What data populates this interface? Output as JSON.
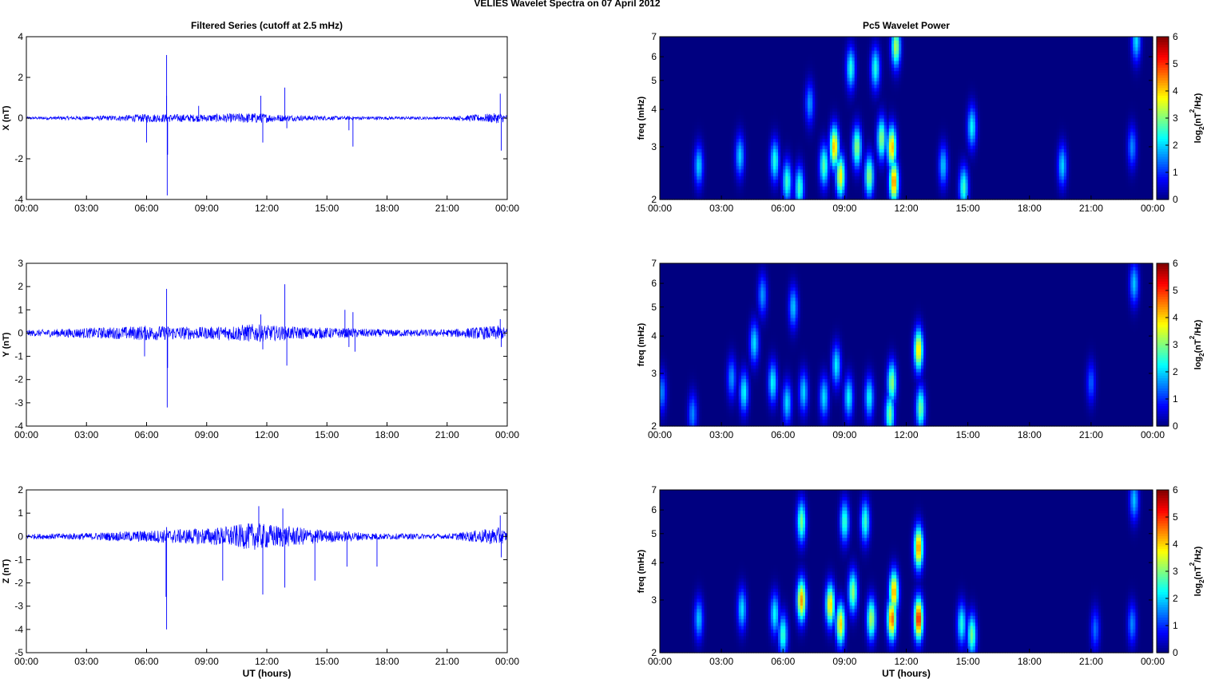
{
  "figure_title": "VELIES Wavelet Spectra on 07 April     2012",
  "chart_data": [
    {
      "type": "line",
      "panel": "filtered-series-x",
      "title": "Filtered Series (cutoff at 2.5 mHz)",
      "xlabel": "",
      "ylabel": "X (nT)",
      "xlim": [
        0,
        24
      ],
      "ylim": [
        -4,
        4
      ],
      "x_ticks": [
        "00:00",
        "03:00",
        "06:00",
        "09:00",
        "12:00",
        "15:00",
        "18:00",
        "21:00",
        "00:00"
      ],
      "y_ticks": [
        "4",
        "2",
        "0",
        "-2",
        "-4"
      ],
      "color": "#0000ff",
      "noise_envelope": [
        [
          0,
          0.05
        ],
        [
          3.3,
          0.08
        ],
        [
          4.5,
          0.1
        ],
        [
          6,
          0.16
        ],
        [
          9,
          0.14
        ],
        [
          11.3,
          0.2
        ],
        [
          13,
          0.12
        ],
        [
          15,
          0.08
        ],
        [
          18,
          0.06
        ],
        [
          21,
          0.05
        ],
        [
          23.6,
          0.2
        ],
        [
          24,
          0.12
        ]
      ],
      "spikes": [
        {
          "t": 7.0,
          "y": 3.1
        },
        {
          "t": 7.03,
          "y": -3.8
        },
        {
          "t": 7.0,
          "y": 1.1
        },
        {
          "t": 7.05,
          "y": -1.8
        },
        {
          "t": 6.0,
          "y": -1.2
        },
        {
          "t": 11.7,
          "y": 1.1
        },
        {
          "t": 11.8,
          "y": -1.2
        },
        {
          "t": 12.9,
          "y": 1.5
        },
        {
          "t": 13.0,
          "y": -0.5
        },
        {
          "t": 16.3,
          "y": -1.4
        },
        {
          "t": 16.1,
          "y": -0.6
        },
        {
          "t": 23.65,
          "y": 1.2
        },
        {
          "t": 23.7,
          "y": -1.6
        },
        {
          "t": 8.6,
          "y": 0.6
        }
      ]
    },
    {
      "type": "line",
      "panel": "filtered-series-y",
      "title": "",
      "xlabel": "",
      "ylabel": "Y (nT)",
      "xlim": [
        0,
        24
      ],
      "ylim": [
        -4,
        3
      ],
      "x_ticks": [
        "00:00",
        "03:00",
        "06:00",
        "09:00",
        "12:00",
        "15:00",
        "18:00",
        "21:00",
        "00:00"
      ],
      "y_ticks": [
        "3",
        "2",
        "1",
        "0",
        "-1",
        "-2",
        "-3",
        "-4"
      ],
      "color": "#0000ff",
      "noise_envelope": [
        [
          0,
          0.1
        ],
        [
          3.3,
          0.18
        ],
        [
          4.5,
          0.2
        ],
        [
          6,
          0.25
        ],
        [
          9,
          0.2
        ],
        [
          11.3,
          0.3
        ],
        [
          13,
          0.22
        ],
        [
          15,
          0.18
        ],
        [
          18,
          0.12
        ],
        [
          21,
          0.12
        ],
        [
          23.6,
          0.25
        ],
        [
          24,
          0.15
        ]
      ],
      "spikes": [
        {
          "t": 7.0,
          "y": 1.9
        },
        {
          "t": 7.03,
          "y": -3.2
        },
        {
          "t": 7.05,
          "y": -1.5
        },
        {
          "t": 5.9,
          "y": -1.0
        },
        {
          "t": 12.9,
          "y": 2.1
        },
        {
          "t": 13.0,
          "y": -1.4
        },
        {
          "t": 11.7,
          "y": 0.8
        },
        {
          "t": 11.8,
          "y": -0.7
        },
        {
          "t": 15.9,
          "y": 1.0
        },
        {
          "t": 16.3,
          "y": 0.9
        },
        {
          "t": 16.4,
          "y": -0.8
        },
        {
          "t": 16.1,
          "y": -0.6
        },
        {
          "t": 23.65,
          "y": 0.6
        },
        {
          "t": 23.7,
          "y": -0.6
        }
      ]
    },
    {
      "type": "line",
      "panel": "filtered-series-z",
      "title": "",
      "xlabel": "UT (hours)",
      "ylabel": "Z (nT)",
      "xlim": [
        0,
        24
      ],
      "ylim": [
        -5,
        2
      ],
      "x_ticks": [
        "00:00",
        "03:00",
        "06:00",
        "09:00",
        "12:00",
        "15:00",
        "18:00",
        "21:00",
        "00:00"
      ],
      "y_ticks": [
        "2",
        "1",
        "0",
        "-1",
        "-2",
        "-3",
        "-4",
        "-5"
      ],
      "color": "#0000ff",
      "noise_envelope": [
        [
          0,
          0.08
        ],
        [
          3.3,
          0.12
        ],
        [
          4.5,
          0.15
        ],
        [
          6,
          0.2
        ],
        [
          8,
          0.25
        ],
        [
          9.5,
          0.3
        ],
        [
          11.3,
          0.45
        ],
        [
          13,
          0.35
        ],
        [
          15,
          0.2
        ],
        [
          18,
          0.1
        ],
        [
          21,
          0.08
        ],
        [
          23.6,
          0.3
        ],
        [
          24,
          0.15
        ]
      ],
      "spikes": [
        {
          "t": 7.0,
          "y": -4.0
        },
        {
          "t": 6.97,
          "y": -2.6
        },
        {
          "t": 7.0,
          "y": 0.4
        },
        {
          "t": 9.8,
          "y": -1.9
        },
        {
          "t": 11.6,
          "y": 1.3
        },
        {
          "t": 11.8,
          "y": -2.5
        },
        {
          "t": 12.8,
          "y": 1.2
        },
        {
          "t": 12.9,
          "y": -2.2
        },
        {
          "t": 14.4,
          "y": -1.9
        },
        {
          "t": 16.0,
          "y": -1.3
        },
        {
          "t": 17.5,
          "y": -1.3
        },
        {
          "t": 23.65,
          "y": 0.9
        },
        {
          "t": 23.7,
          "y": -0.9
        }
      ]
    },
    {
      "type": "heatmap",
      "panel": "wavelet-power-x",
      "title": "Pc5 Wavelet Power",
      "xlabel": "",
      "ylabel": "freq (mHz)",
      "xlim": [
        0,
        24
      ],
      "ylim": [
        2,
        7
      ],
      "yscale": "log",
      "x_ticks": [
        "00:00",
        "03:00",
        "06:00",
        "09:00",
        "12:00",
        "15:00",
        "18:00",
        "21:00",
        "00:00"
      ],
      "y_ticks": [
        "7",
        "6",
        "5",
        "4",
        "3",
        "2"
      ],
      "colorbar": {
        "label_base": "log",
        "label_sub": "2",
        "label_mid": "(nT",
        "label_sup": "2",
        "label_end": "/Hz)",
        "range": [
          0,
          6
        ],
        "ticks": [
          "6",
          "5",
          "4",
          "3",
          "2",
          "1",
          "0"
        ]
      },
      "blobs": [
        {
          "t": 1.9,
          "f": 2.6,
          "v": 2.3
        },
        {
          "t": 3.9,
          "f": 2.8,
          "v": 2.3
        },
        {
          "t": 5.6,
          "f": 2.7,
          "v": 2.8
        },
        {
          "t": 6.2,
          "f": 2.3,
          "v": 3.0
        },
        {
          "t": 6.8,
          "f": 2.2,
          "v": 3.0
        },
        {
          "t": 8.0,
          "f": 2.6,
          "v": 3.2
        },
        {
          "t": 8.5,
          "f": 3.0,
          "v": 4.8
        },
        {
          "t": 8.8,
          "f": 2.4,
          "v": 4.4
        },
        {
          "t": 9.6,
          "f": 3.0,
          "v": 3.6
        },
        {
          "t": 10.2,
          "f": 2.4,
          "v": 3.6
        },
        {
          "t": 10.8,
          "f": 3.2,
          "v": 3.6
        },
        {
          "t": 11.3,
          "f": 3.0,
          "v": 4.8
        },
        {
          "t": 11.4,
          "f": 2.3,
          "v": 5.2
        },
        {
          "t": 11.5,
          "f": 6.5,
          "v": 3.8
        },
        {
          "t": 9.3,
          "f": 5.5,
          "v": 2.8
        },
        {
          "t": 10.5,
          "f": 5.5,
          "v": 2.8
        },
        {
          "t": 13.8,
          "f": 2.6,
          "v": 2.2
        },
        {
          "t": 14.8,
          "f": 2.2,
          "v": 3.0
        },
        {
          "t": 15.2,
          "f": 3.5,
          "v": 2.6
        },
        {
          "t": 19.6,
          "f": 2.6,
          "v": 2.3
        },
        {
          "t": 23.2,
          "f": 6.8,
          "v": 2.4
        },
        {
          "t": 23.0,
          "f": 3.0,
          "v": 1.8
        },
        {
          "t": 7.3,
          "f": 4.2,
          "v": 1.9
        }
      ]
    },
    {
      "type": "heatmap",
      "panel": "wavelet-power-y",
      "title": "",
      "xlabel": "",
      "ylabel": "freq (mHz)",
      "xlim": [
        0,
        24
      ],
      "ylim": [
        2,
        7
      ],
      "yscale": "log",
      "x_ticks": [
        "00:00",
        "03:00",
        "06:00",
        "09:00",
        "12:00",
        "15:00",
        "18:00",
        "21:00",
        "00:00"
      ],
      "y_ticks": [
        "7",
        "6",
        "5",
        "4",
        "3",
        "2"
      ],
      "colorbar": {
        "label_base": "log",
        "label_sub": "2",
        "label_mid": "(nT",
        "label_sup": "2",
        "label_end": "/Hz)",
        "range": [
          0,
          6
        ],
        "ticks": [
          "6",
          "5",
          "4",
          "3",
          "2",
          "1",
          "0"
        ]
      },
      "blobs": [
        {
          "t": 0.1,
          "f": 2.6,
          "v": 1.8
        },
        {
          "t": 1.6,
          "f": 2.2,
          "v": 1.8
        },
        {
          "t": 3.5,
          "f": 2.9,
          "v": 1.9
        },
        {
          "t": 4.1,
          "f": 2.6,
          "v": 2.6
        },
        {
          "t": 4.6,
          "f": 3.8,
          "v": 2.4
        },
        {
          "t": 5.5,
          "f": 2.8,
          "v": 2.6
        },
        {
          "t": 6.2,
          "f": 2.4,
          "v": 2.4
        },
        {
          "t": 7.0,
          "f": 2.6,
          "v": 2.3
        },
        {
          "t": 8.0,
          "f": 2.5,
          "v": 2.4
        },
        {
          "t": 8.6,
          "f": 3.2,
          "v": 2.5
        },
        {
          "t": 9.2,
          "f": 2.5,
          "v": 2.6
        },
        {
          "t": 10.2,
          "f": 2.5,
          "v": 2.6
        },
        {
          "t": 11.2,
          "f": 2.2,
          "v": 3.4
        },
        {
          "t": 11.3,
          "f": 2.8,
          "v": 3.6
        },
        {
          "t": 12.6,
          "f": 3.6,
          "v": 4.6
        },
        {
          "t": 12.7,
          "f": 2.3,
          "v": 3.4
        },
        {
          "t": 6.5,
          "f": 5.0,
          "v": 2.2
        },
        {
          "t": 5.0,
          "f": 5.5,
          "v": 1.9
        },
        {
          "t": 21.0,
          "f": 2.8,
          "v": 1.5
        },
        {
          "t": 23.1,
          "f": 6.0,
          "v": 2.2
        }
      ]
    },
    {
      "type": "heatmap",
      "panel": "wavelet-power-z",
      "title": "",
      "xlabel": "UT (hours)",
      "ylabel": "freq (mHz)",
      "xlim": [
        0,
        24
      ],
      "ylim": [
        2,
        7
      ],
      "yscale": "log",
      "x_ticks": [
        "00:00",
        "03:00",
        "06:00",
        "09:00",
        "12:00",
        "15:00",
        "18:00",
        "21:00",
        "00:00"
      ],
      "y_ticks": [
        "7",
        "6",
        "5",
        "4",
        "3",
        "2"
      ],
      "colorbar": {
        "label_base": "log",
        "label_sub": "2",
        "label_mid": "(nT",
        "label_sup": "2",
        "label_end": "/Hz)",
        "range": [
          0,
          6
        ],
        "ticks": [
          "6",
          "5",
          "4",
          "3",
          "2",
          "1",
          "0"
        ]
      },
      "blobs": [
        {
          "t": 1.9,
          "f": 2.6,
          "v": 2.2
        },
        {
          "t": 4.0,
          "f": 2.8,
          "v": 2.4
        },
        {
          "t": 5.6,
          "f": 2.7,
          "v": 2.6
        },
        {
          "t": 6.0,
          "f": 2.3,
          "v": 3.0
        },
        {
          "t": 6.9,
          "f": 3.0,
          "v": 5.0
        },
        {
          "t": 6.9,
          "f": 5.5,
          "v": 3.4
        },
        {
          "t": 8.3,
          "f": 2.9,
          "v": 4.6
        },
        {
          "t": 8.8,
          "f": 2.5,
          "v": 4.6
        },
        {
          "t": 9.4,
          "f": 3.2,
          "v": 3.6
        },
        {
          "t": 10.3,
          "f": 2.6,
          "v": 3.8
        },
        {
          "t": 11.3,
          "f": 2.6,
          "v": 5.4
        },
        {
          "t": 11.4,
          "f": 3.2,
          "v": 5.0
        },
        {
          "t": 12.6,
          "f": 2.6,
          "v": 6.0
        },
        {
          "t": 12.6,
          "f": 4.5,
          "v": 5.2
        },
        {
          "t": 14.7,
          "f": 2.5,
          "v": 2.8
        },
        {
          "t": 15.2,
          "f": 2.3,
          "v": 3.4
        },
        {
          "t": 9.0,
          "f": 5.5,
          "v": 3.0
        },
        {
          "t": 10.0,
          "f": 5.5,
          "v": 3.0
        },
        {
          "t": 21.2,
          "f": 2.4,
          "v": 1.6
        },
        {
          "t": 23.0,
          "f": 2.5,
          "v": 1.8
        },
        {
          "t": 23.1,
          "f": 6.5,
          "v": 2.2
        }
      ]
    }
  ]
}
